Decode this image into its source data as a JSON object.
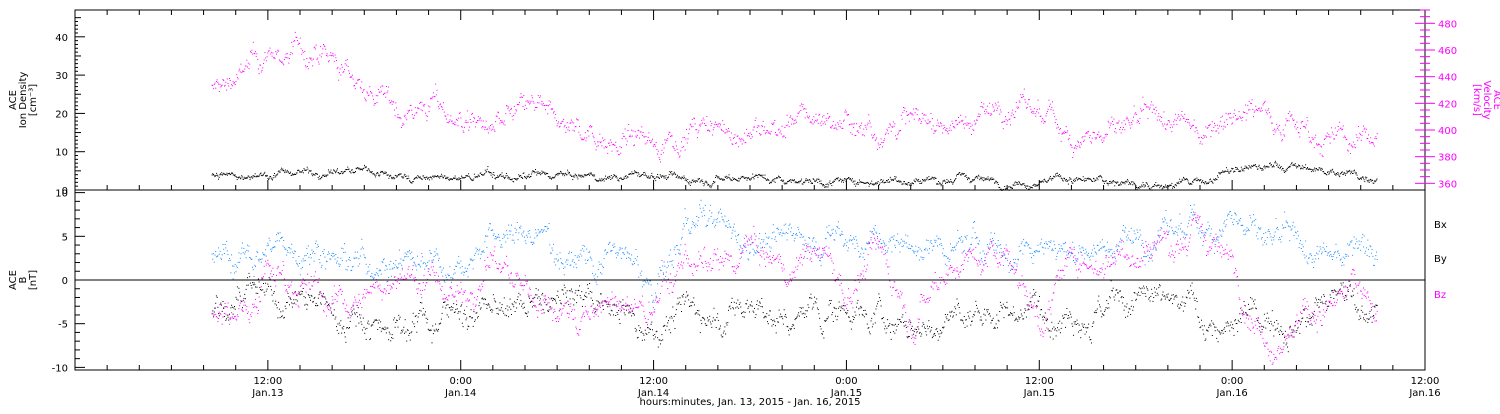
{
  "colors": {
    "bx": "#000000",
    "by": "#1e8cff",
    "bz": "#ff00ff",
    "density": "#000000",
    "velocity": "#ff00ff"
  },
  "chart_data": [
    {
      "type": "scatter",
      "panel": "top",
      "title": "",
      "ylabel_left": [
        "ACE",
        "Ion Density",
        "[cm⁻³]"
      ],
      "ylabel_right": [
        "ACE",
        "Velocity",
        "[km/s]"
      ],
      "ylim_left": [
        0,
        47
      ],
      "ylim_right": [
        355,
        490
      ],
      "yticks_left": [
        0,
        10,
        20,
        30,
        40
      ],
      "yticks_right": [
        360,
        380,
        400,
        420,
        440,
        460,
        480
      ],
      "x_hours_from_jan13_00": [
        0,
        84
      ],
      "series": [
        {
          "axis": "left",
          "anchors": [
            [
              8.5,
              4
            ],
            [
              10,
              4
            ],
            [
              12,
              4
            ],
            [
              14,
              5
            ],
            [
              16,
              5
            ],
            [
              18,
              5
            ],
            [
              20,
              4
            ],
            [
              22,
              3
            ],
            [
              24,
              3
            ],
            [
              26,
              4
            ],
            [
              28,
              3
            ],
            [
              30,
              4
            ],
            [
              32,
              3
            ],
            [
              34,
              4
            ],
            [
              36,
              4
            ],
            [
              38,
              3
            ],
            [
              40,
              4
            ],
            [
              42,
              4
            ],
            [
              44,
              3
            ],
            [
              46,
              3
            ],
            [
              48,
              2
            ],
            [
              50,
              3
            ],
            [
              52,
              3
            ],
            [
              54,
              3
            ],
            [
              56,
              3
            ],
            [
              58,
              2
            ],
            [
              60,
              3
            ],
            [
              62,
              3
            ],
            [
              64,
              2
            ],
            [
              66,
              2
            ],
            [
              68,
              1.5
            ],
            [
              70,
              2
            ],
            [
              72,
              5
            ],
            [
              74,
              6
            ],
            [
              76,
              6
            ],
            [
              78,
              5
            ],
            [
              80,
              4
            ],
            [
              81,
              4
            ]
          ]
        },
        {
          "axis": "right",
          "anchors": [
            [
              8.5,
              430
            ],
            [
              10,
              440
            ],
            [
              12,
              455
            ],
            [
              14,
              460
            ],
            [
              16,
              448
            ],
            [
              18,
              435
            ],
            [
              20,
              415
            ],
            [
              22,
              420
            ],
            [
              24,
              410
            ],
            [
              26,
              400
            ],
            [
              28,
              415
            ],
            [
              30,
              405
            ],
            [
              32,
              400
            ],
            [
              34,
              395
            ],
            [
              36,
              390
            ],
            [
              38,
              402
            ],
            [
              40,
              398
            ],
            [
              42,
              398
            ],
            [
              44,
              402
            ],
            [
              46,
              410
            ],
            [
              48,
              408
            ],
            [
              50,
              402
            ],
            [
              52,
              410
            ],
            [
              54,
              405
            ],
            [
              56,
              410
            ],
            [
              58,
              420
            ],
            [
              60,
              410
            ],
            [
              62,
              400
            ],
            [
              64,
              398
            ],
            [
              66,
              400
            ],
            [
              68,
              405
            ],
            [
              70,
              400
            ],
            [
              72,
              420
            ],
            [
              74,
              418
            ],
            [
              76,
              408
            ],
            [
              78,
              395
            ],
            [
              80,
              390
            ],
            [
              81,
              400
            ]
          ]
        }
      ]
    },
    {
      "type": "scatter",
      "panel": "bottom",
      "title": "",
      "ylabel": [
        "ACE",
        "B",
        "[nT]"
      ],
      "ylim": [
        -10.3,
        10.3
      ],
      "yticks": [
        -10,
        -5,
        0,
        5,
        10
      ],
      "x_hours_from_jan13_00": [
        0,
        84
      ],
      "legend": [
        "Bx",
        "By",
        "Bz"
      ],
      "series": [
        {
          "name": "Bx",
          "anchors": [
            [
              8.5,
              -3
            ],
            [
              10,
              -2
            ],
            [
              12,
              -3
            ],
            [
              14,
              -2
            ],
            [
              16,
              -4
            ],
            [
              18,
              -4
            ],
            [
              20,
              -5
            ],
            [
              22,
              -4
            ],
            [
              24,
              -3
            ],
            [
              26,
              -4
            ],
            [
              28,
              -3
            ],
            [
              30,
              -3
            ],
            [
              32,
              -2
            ],
            [
              34,
              -3
            ],
            [
              36,
              -5
            ],
            [
              38,
              -3
            ],
            [
              40,
              -4
            ],
            [
              42,
              -3
            ],
            [
              44,
              -5
            ],
            [
              46,
              -4
            ],
            [
              48,
              -3
            ],
            [
              50,
              -4
            ],
            [
              52,
              -6
            ],
            [
              54,
              -5
            ],
            [
              56,
              -4
            ],
            [
              58,
              -3
            ],
            [
              60,
              -3
            ],
            [
              62,
              -2
            ],
            [
              64,
              -3
            ],
            [
              66,
              -3
            ],
            [
              68,
              -3
            ],
            [
              70,
              -4
            ],
            [
              72,
              -6
            ],
            [
              74,
              -4
            ],
            [
              76,
              -3
            ],
            [
              78,
              -3
            ],
            [
              80,
              -2
            ],
            [
              81,
              -3
            ]
          ]
        },
        {
          "name": "By",
          "anchors": [
            [
              8.5,
              3
            ],
            [
              10,
              2
            ],
            [
              12,
              4
            ],
            [
              14,
              4
            ],
            [
              16,
              4
            ],
            [
              18,
              2
            ],
            [
              20,
              3
            ],
            [
              22,
              3
            ],
            [
              24,
              3
            ],
            [
              26,
              5
            ],
            [
              28,
              5
            ],
            [
              30,
              4
            ],
            [
              32,
              3
            ],
            [
              34,
              3
            ],
            [
              36,
              -2
            ],
            [
              38,
              6
            ],
            [
              40,
              6
            ],
            [
              42,
              5
            ],
            [
              44,
              5
            ],
            [
              46,
              5
            ],
            [
              48,
              5
            ],
            [
              50,
              4
            ],
            [
              52,
              4
            ],
            [
              54,
              3
            ],
            [
              56,
              4
            ],
            [
              58,
              3
            ],
            [
              60,
              5
            ],
            [
              62,
              4
            ],
            [
              64,
              4
            ],
            [
              66,
              5
            ],
            [
              68,
              5
            ],
            [
              70,
              6
            ],
            [
              72,
              8
            ],
            [
              74,
              4
            ],
            [
              76,
              3
            ],
            [
              78,
              2
            ],
            [
              80,
              6
            ],
            [
              81,
              4
            ]
          ]
        },
        {
          "name": "Bz",
          "anchors": [
            [
              8.5,
              -3
            ],
            [
              10,
              -4
            ],
            [
              12,
              2
            ],
            [
              14,
              0
            ],
            [
              16,
              -3
            ],
            [
              18,
              -2
            ],
            [
              20,
              1
            ],
            [
              22,
              0
            ],
            [
              24,
              -2
            ],
            [
              26,
              3
            ],
            [
              28,
              -2
            ],
            [
              30,
              -3
            ],
            [
              32,
              -4
            ],
            [
              34,
              -3
            ],
            [
              36,
              -4
            ],
            [
              38,
              3
            ],
            [
              40,
              0
            ],
            [
              42,
              4
            ],
            [
              44,
              0
            ],
            [
              46,
              5
            ],
            [
              48,
              -2
            ],
            [
              50,
              4
            ],
            [
              52,
              -3
            ],
            [
              54,
              2
            ],
            [
              56,
              3
            ],
            [
              58,
              4
            ],
            [
              60,
              -4
            ],
            [
              62,
              2
            ],
            [
              64,
              3
            ],
            [
              66,
              4
            ],
            [
              68,
              5
            ],
            [
              70,
              5
            ],
            [
              72,
              2
            ],
            [
              74,
              -6
            ],
            [
              76,
              -5
            ],
            [
              78,
              -3
            ],
            [
              80,
              -1
            ],
            [
              81,
              -4
            ]
          ]
        }
      ]
    }
  ],
  "x_axis": {
    "ticks": [
      {
        "time": "12:00",
        "date": "Jan.13"
      },
      {
        "time": "0:00",
        "date": "Jan.14"
      },
      {
        "time": "12:00",
        "date": "Jan.14"
      },
      {
        "time": "0:00",
        "date": "Jan.15"
      },
      {
        "time": "12:00",
        "date": "Jan.15"
      },
      {
        "time": "0:00",
        "date": "Jan.16"
      },
      {
        "time": "12:00",
        "date": "Jan.16"
      }
    ],
    "label": "hours:minutes, Jan. 13, 2015 - Jan. 16, 2015"
  }
}
